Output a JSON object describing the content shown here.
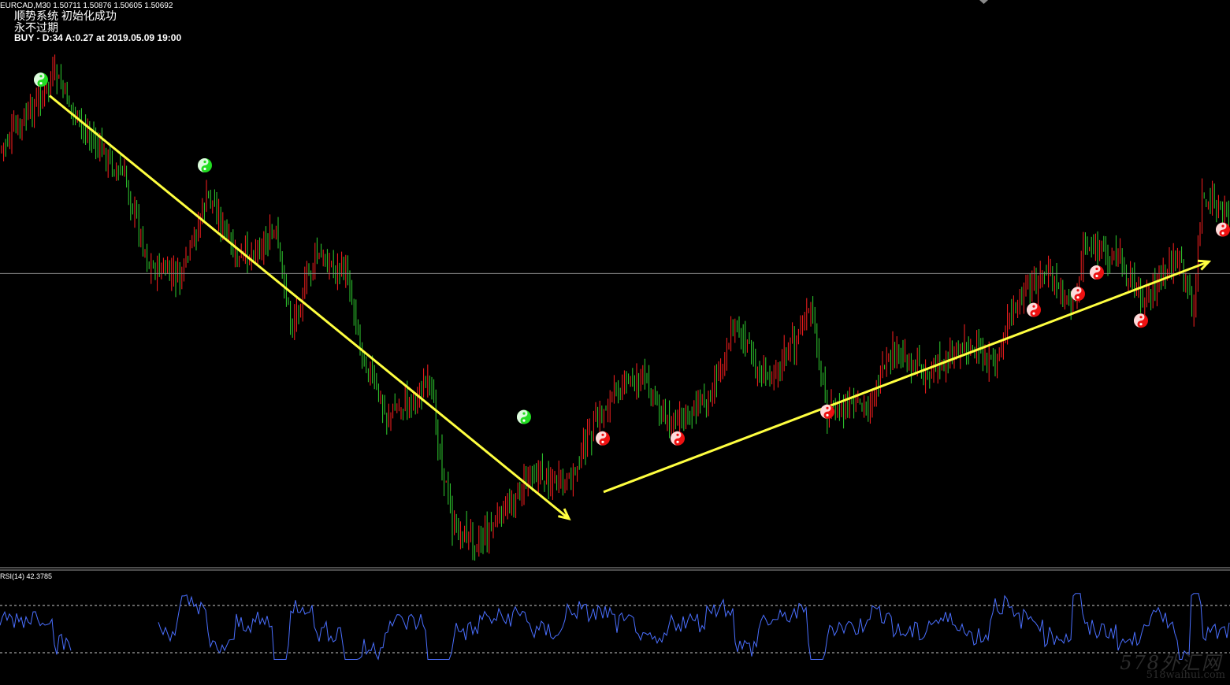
{
  "header": {
    "symbol_line": "EURCAD,M30  1.50711 1.50876 1.50605 1.50692",
    "system_line": "顺势系统 初始化成功",
    "expire_line": "永不过期",
    "signal_line": "BUY - D:34 A:0.27 at 2019.05.09 19:00"
  },
  "rsi": {
    "label": "RSI(14) 42.3785"
  },
  "watermark": {
    "logo": "578外汇网",
    "site": "518waihui.com"
  },
  "colors": {
    "background": "#000000",
    "bull_bar": "#ff2020",
    "bear_bar": "#30d030",
    "trend_arrow": "#ffff40",
    "rsi_line": "#4a6fff",
    "rsi_levels": "#c8c8c8",
    "price_line": "#8a8a8a",
    "sell_marker": "#22dd22",
    "buy_marker": "#ee1111"
  },
  "chart_data": {
    "type": "candlestick",
    "symbol": "EURCAD",
    "timeframe": "M30",
    "last_bar": {
      "open": 1.50711,
      "high": 1.50876,
      "low": 1.50605,
      "close": 1.50692
    },
    "close_path": [
      [
        0,
        0.22
      ],
      [
        40,
        0.15
      ],
      [
        70,
        0.08
      ],
      [
        100,
        0.17
      ],
      [
        160,
        0.28
      ],
      [
        190,
        0.44
      ],
      [
        230,
        0.46
      ],
      [
        265,
        0.3
      ],
      [
        300,
        0.43
      ],
      [
        350,
        0.38
      ],
      [
        370,
        0.55
      ],
      [
        400,
        0.42
      ],
      [
        440,
        0.45
      ],
      [
        460,
        0.6
      ],
      [
        490,
        0.72
      ],
      [
        545,
        0.66
      ],
      [
        575,
        0.93
      ],
      [
        610,
        0.95
      ],
      [
        650,
        0.88
      ],
      [
        675,
        0.82
      ],
      [
        720,
        0.85
      ],
      [
        740,
        0.78
      ],
      [
        780,
        0.67
      ],
      [
        815,
        0.64
      ],
      [
        850,
        0.74
      ],
      [
        900,
        0.68
      ],
      [
        935,
        0.54
      ],
      [
        965,
        0.65
      ],
      [
        1000,
        0.6
      ],
      [
        1030,
        0.52
      ],
      [
        1050,
        0.71
      ],
      [
        1100,
        0.7
      ],
      [
        1135,
        0.6
      ],
      [
        1180,
        0.64
      ],
      [
        1225,
        0.58
      ],
      [
        1260,
        0.63
      ],
      [
        1285,
        0.52
      ],
      [
        1325,
        0.45
      ],
      [
        1365,
        0.51
      ],
      [
        1375,
        0.4
      ],
      [
        1420,
        0.42
      ],
      [
        1450,
        0.5
      ],
      [
        1495,
        0.42
      ],
      [
        1515,
        0.52
      ],
      [
        1525,
        0.31
      ],
      [
        1561,
        0.35
      ]
    ],
    "rsi_period": 14,
    "rsi_value": 42.3785,
    "rsi_levels": [
      70,
      30
    ],
    "sell_signals": [
      [
        52,
        0.09
      ],
      [
        260,
        0.25
      ],
      [
        665,
        0.72
      ]
    ],
    "buy_signals": [
      [
        765,
        0.76
      ],
      [
        860,
        0.76
      ],
      [
        1050,
        0.71
      ],
      [
        1312,
        0.52
      ],
      [
        1368,
        0.49
      ],
      [
        1392,
        0.45
      ],
      [
        1448,
        0.54
      ],
      [
        1552,
        0.37
      ]
    ],
    "trend_lines": [
      {
        "direction": "down",
        "from": [
          63,
          0.12
        ],
        "to": [
          722,
          0.91
        ]
      },
      {
        "direction": "up",
        "from": [
          766,
          0.86
        ],
        "to": [
          1534,
          0.43
        ]
      }
    ],
    "current_price_level": 0.452
  }
}
